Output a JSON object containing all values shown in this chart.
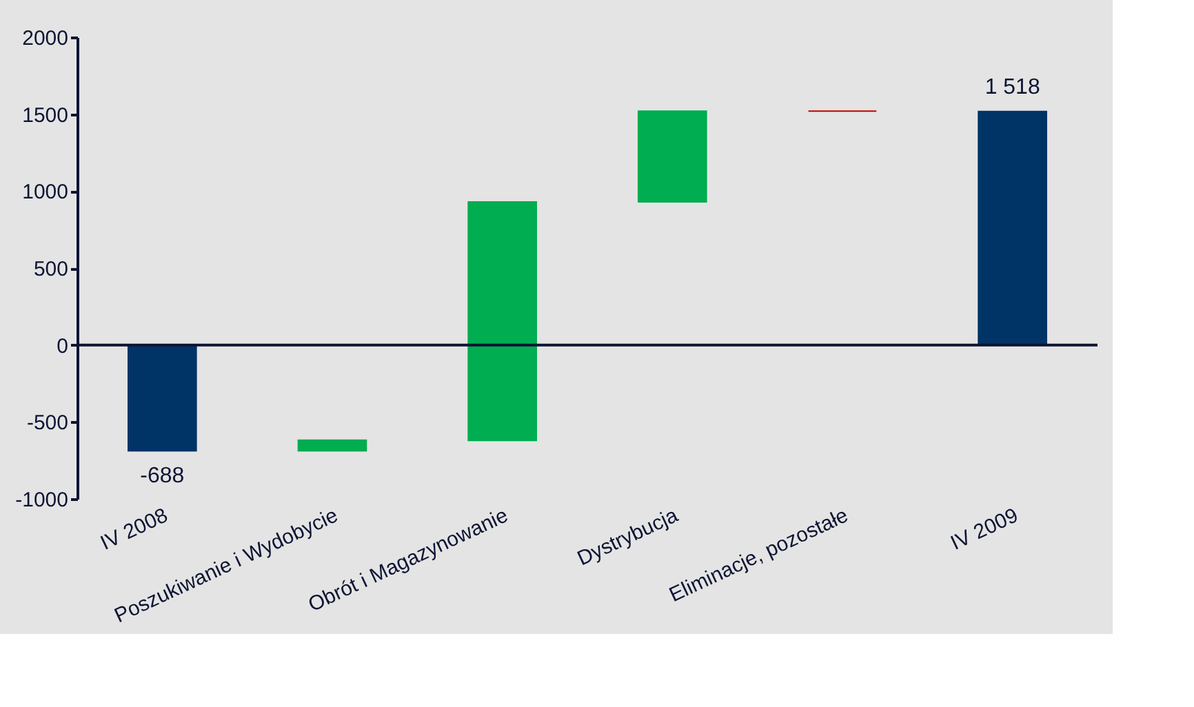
{
  "chart_data": {
    "type": "bar",
    "categories": [
      "IV 2008",
      "Poszukiwanie i Wydobycie",
      "Obrót i Magazynowanie",
      "Dystrybucja",
      "Eliminacje, pozostałe",
      "IV 2009"
    ],
    "values": [
      -688,
      70,
      1550,
      590,
      0,
      1518
    ],
    "base": [
      0,
      -688,
      -620,
      930,
      1520,
      0
    ],
    "colors": [
      "#003366",
      "#00ad50",
      "#00ad50",
      "#00ad50",
      "#c00000",
      "#003366"
    ],
    "value_labels": [
      "-688",
      null,
      null,
      null,
      null,
      "1 518"
    ],
    "ylim": [
      -1000,
      2000
    ],
    "yticks": [
      -1000,
      -500,
      0,
      500,
      1000,
      1500,
      2000
    ],
    "ref_lines": [
      {
        "axis": "y",
        "value": 0,
        "color": "#0d1433"
      }
    ],
    "grid": false
  }
}
